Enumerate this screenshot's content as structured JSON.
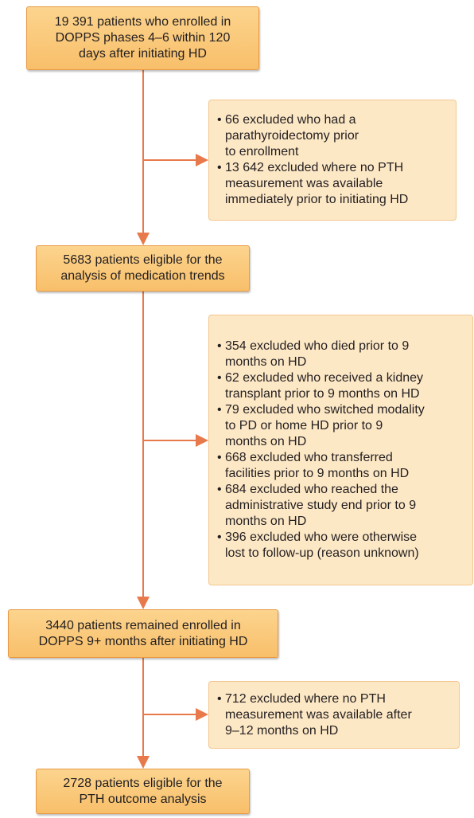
{
  "main_boxes": [
    {
      "lines": [
        "19 391 patients who enrolled in",
        "DOPPS phases 4–6 within 120",
        "days after initiating HD"
      ]
    },
    {
      "lines": [
        "5683 patients eligible for the",
        "analysis of medication trends"
      ]
    },
    {
      "lines": [
        "3440 patients remained enrolled in",
        "DOPPS 9+ months after initiating HD"
      ]
    },
    {
      "lines": [
        "2728 patients eligible for the",
        "PTH outcome analysis"
      ]
    }
  ],
  "exclusion_boxes": [
    {
      "items": [
        {
          "lines": [
            "66 excluded who had a",
            "parathyroidectomy prior",
            "to enrollment"
          ]
        },
        {
          "lines": [
            "13 642 excluded where no PTH",
            "measurement was available",
            "immediately prior to initiating HD"
          ]
        }
      ]
    },
    {
      "items": [
        {
          "lines": [
            "354 excluded who died prior to 9",
            "months on HD"
          ]
        },
        {
          "lines": [
            "62 excluded who received a kidney",
            "transplant prior to 9 months on HD"
          ]
        },
        {
          "lines": [
            "79 excluded who switched modality",
            "to PD or home HD prior to 9",
            "months on HD"
          ]
        },
        {
          "lines": [
            "668 excluded who transferred",
            "facilities prior to 9 months on HD"
          ]
        },
        {
          "lines": [
            "684 excluded who reached the",
            "administrative study end prior to 9",
            "months on HD"
          ]
        },
        {
          "lines": [
            "396 excluded who were otherwise",
            "lost to follow-up (reason unknown)"
          ]
        }
      ]
    },
    {
      "items": [
        {
          "lines": [
            "712 excluded where no PTH",
            "measurement was available after",
            "9–12 months on HD"
          ]
        }
      ]
    }
  ]
}
